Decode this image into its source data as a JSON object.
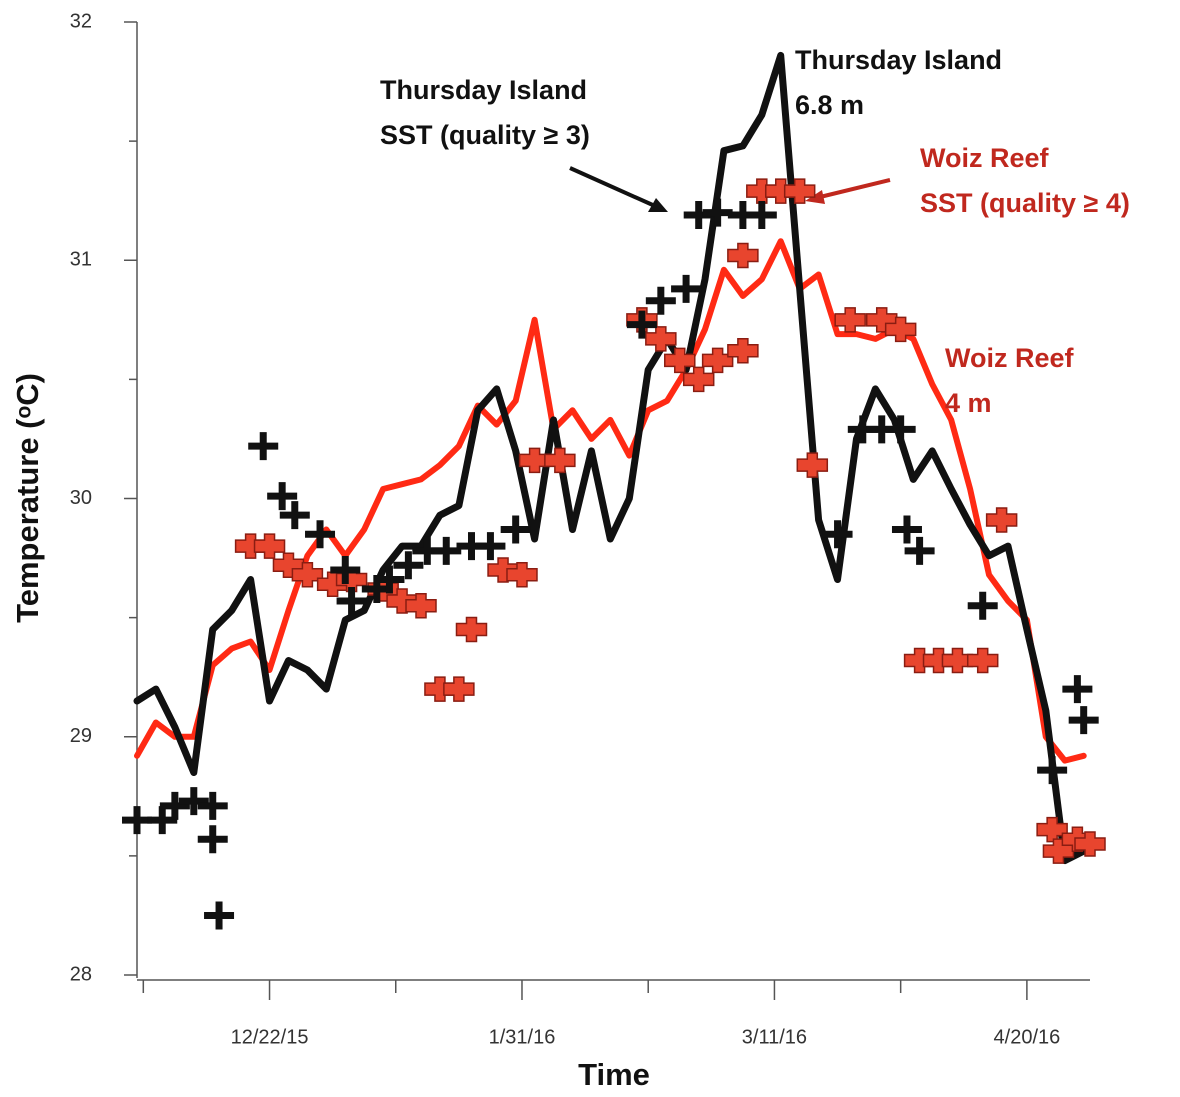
{
  "chart_data": {
    "type": "line",
    "xlabel": "Time",
    "ylabel": "Temperature (ᵒC)",
    "xlim": [
      "2015-12-01",
      "2016-04-30"
    ],
    "ylim": [
      28,
      32
    ],
    "yticks": [
      28,
      29,
      30,
      31,
      32
    ],
    "yminorticks": [
      28.5,
      29.5,
      30.5,
      31.5
    ],
    "xticks": [
      {
        "value": "2015-12-22",
        "label": "12/22/15"
      },
      {
        "value": "2016-01-31",
        "label": "1/31/16"
      },
      {
        "value": "2016-03-11",
        "label": "3/11/16"
      },
      {
        "value": "2016-04-20",
        "label": "4/20/16"
      }
    ],
    "xminorticks": [
      "2015-12-02",
      "2016-01-11",
      "2016-02-20",
      "2016-03-31"
    ],
    "x": [
      "2015-12-01",
      "2015-12-04",
      "2015-12-07",
      "2015-12-10",
      "2015-12-13",
      "2015-12-16",
      "2015-12-19",
      "2015-12-22",
      "2015-12-25",
      "2015-12-28",
      "2015-12-31",
      "2016-01-03",
      "2016-01-06",
      "2016-01-09",
      "2016-01-12",
      "2016-01-15",
      "2016-01-18",
      "2016-01-21",
      "2016-01-24",
      "2016-01-27",
      "2016-01-30",
      "2016-02-02",
      "2016-02-05",
      "2016-02-08",
      "2016-02-11",
      "2016-02-14",
      "2016-02-17",
      "2016-02-20",
      "2016-02-23",
      "2016-02-26",
      "2016-02-29",
      "2016-03-03",
      "2016-03-06",
      "2016-03-09",
      "2016-03-12",
      "2016-03-15",
      "2016-03-18",
      "2016-03-21",
      "2016-03-24",
      "2016-03-27",
      "2016-03-30",
      "2016-04-02",
      "2016-04-05",
      "2016-04-08",
      "2016-04-11",
      "2016-04-14",
      "2016-04-17",
      "2016-04-20",
      "2016-04-23",
      "2016-04-26",
      "2016-04-29"
    ],
    "series": [
      {
        "type": "line",
        "color": "#ff2a14",
        "width": 6,
        "label": [
          "Woiz Reef",
          "4 m"
        ],
        "values": [
          28.92,
          29.06,
          29.0,
          29.0,
          29.3,
          29.37,
          29.4,
          29.28,
          29.53,
          29.76,
          29.87,
          29.76,
          29.87,
          30.04,
          30.06,
          30.08,
          30.14,
          30.22,
          30.39,
          30.31,
          30.41,
          30.75,
          30.29,
          30.37,
          30.25,
          30.33,
          30.18,
          30.37,
          30.41,
          30.54,
          30.71,
          30.96,
          30.85,
          30.92,
          31.08,
          30.88,
          30.94,
          30.69,
          30.69,
          30.67,
          30.71,
          30.67,
          30.48,
          30.33,
          30.04,
          29.68,
          29.57,
          29.49,
          29.0,
          28.9,
          28.92
        ]
      },
      {
        "type": "line",
        "color": "#111111",
        "width": 7,
        "label": [
          "Thursday Island",
          "6.8 m"
        ],
        "values": [
          29.15,
          29.2,
          29.04,
          28.85,
          29.45,
          29.53,
          29.66,
          29.15,
          29.32,
          29.28,
          29.2,
          29.49,
          29.53,
          29.7,
          29.8,
          29.8,
          29.93,
          29.97,
          30.37,
          30.46,
          30.2,
          29.83,
          30.33,
          29.87,
          30.2,
          29.83,
          30.0,
          30.54,
          30.67,
          30.54,
          30.92,
          31.46,
          31.48,
          31.61,
          31.86,
          30.88,
          29.91,
          29.66,
          30.25,
          30.46,
          30.33,
          30.08,
          30.2,
          30.04,
          29.89,
          29.76,
          29.8,
          29.45,
          29.11,
          28.48,
          28.52
        ]
      },
      {
        "type": "scatter",
        "marker": "square",
        "color": "#e8452e",
        "label": [
          "Woiz Reef",
          "SST (quality ≥ 4)"
        ],
        "x": [
          "2015-12-19",
          "2015-12-22",
          "2015-12-25",
          "2015-12-28",
          "2016-01-01",
          "2016-01-04",
          "2016-01-09",
          "2016-01-12",
          "2016-01-15",
          "2016-01-18",
          "2016-01-21",
          "2016-01-23",
          "2016-01-28",
          "2016-01-31",
          "2016-02-02",
          "2016-02-06",
          "2016-02-19",
          "2016-02-22",
          "2016-02-25",
          "2016-02-28",
          "2016-03-02",
          "2016-03-06",
          "2016-03-06",
          "2016-03-09",
          "2016-03-12",
          "2016-03-15",
          "2016-03-17",
          "2016-03-23",
          "2016-03-28",
          "2016-03-31",
          "2016-04-03",
          "2016-04-06",
          "2016-04-09",
          "2016-04-13",
          "2016-04-16",
          "2016-04-24",
          "2016-04-25",
          "2016-04-28",
          "2016-04-30"
        ],
        "values": [
          29.8,
          29.8,
          29.72,
          29.68,
          29.64,
          29.66,
          29.62,
          29.57,
          29.55,
          29.2,
          29.2,
          29.45,
          29.7,
          29.68,
          30.16,
          30.16,
          30.75,
          30.67,
          30.58,
          30.5,
          30.58,
          30.62,
          31.02,
          31.29,
          31.29,
          31.29,
          30.14,
          30.75,
          30.75,
          30.71,
          29.32,
          29.32,
          29.32,
          29.32,
          29.91,
          28.61,
          28.52,
          28.57,
          28.55
        ]
      },
      {
        "type": "scatter",
        "marker": "plus",
        "color": "#111111",
        "label": [
          "Thursday Island",
          "SST (quality ≥ 3)"
        ],
        "x": [
          "2015-12-01",
          "2015-12-05",
          "2015-12-07",
          "2015-12-10",
          "2015-12-13",
          "2015-12-13",
          "2015-12-14",
          "2015-12-21",
          "2015-12-24",
          "2015-12-26",
          "2015-12-30",
          "2016-01-03",
          "2016-01-04",
          "2016-01-08",
          "2016-01-10",
          "2016-01-13",
          "2016-01-16",
          "2016-01-19",
          "2016-01-23",
          "2016-01-26",
          "2016-01-30",
          "2016-02-19",
          "2016-02-22",
          "2016-02-26",
          "2016-02-28",
          "2016-03-02",
          "2016-03-06",
          "2016-03-09",
          "2016-03-21",
          "2016-03-25",
          "2016-03-28",
          "2016-03-31",
          "2016-04-01",
          "2016-04-03",
          "2016-04-13",
          "2016-04-24",
          "2016-04-28",
          "2016-04-29"
        ],
        "values": [
          28.65,
          28.65,
          28.71,
          28.73,
          28.71,
          28.57,
          28.25,
          30.22,
          30.01,
          29.93,
          29.85,
          29.7,
          29.57,
          29.62,
          29.66,
          29.72,
          29.78,
          29.78,
          29.8,
          29.8,
          29.87,
          30.73,
          30.83,
          30.88,
          31.19,
          31.2,
          31.19,
          31.19,
          29.85,
          30.29,
          30.29,
          30.29,
          29.87,
          29.78,
          29.55,
          28.86,
          29.2,
          29.07
        ]
      }
    ]
  }
}
